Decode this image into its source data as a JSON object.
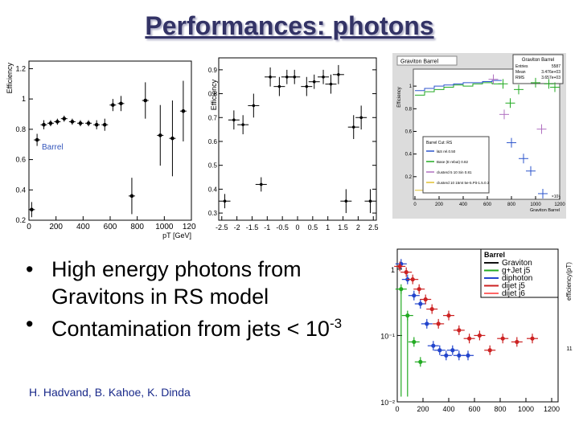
{
  "slide": {
    "title": "Performances: photons",
    "bullets": [
      {
        "text": "High energy photons from Gravitons in RS model",
        "sup": ""
      },
      {
        "text": "Contamination from jets < 10",
        "sup": "-3"
      }
    ],
    "authors": "H. Hadvand, B. Kahoe, K. Dinda"
  },
  "chart_data": [
    {
      "type": "scatter",
      "ylabel": "Efficiency",
      "xlabel": "pT [GeV]",
      "legend": "Barrel",
      "xlim": [
        0,
        1200
      ],
      "ylim": [
        0.2,
        1.25
      ],
      "x_ticks": [
        "0",
        "200",
        "400",
        "600",
        "800",
        "1000",
        "1200"
      ],
      "y_ticks": [
        "0.2",
        "0.4",
        "0.6",
        "0.8",
        "1",
        "1.2"
      ],
      "points": [
        {
          "x": 20,
          "y": 0.27,
          "err": 0.05
        },
        {
          "x": 60,
          "y": 0.73,
          "err": 0.04
        },
        {
          "x": 110,
          "y": 0.83,
          "err": 0.03
        },
        {
          "x": 160,
          "y": 0.84,
          "err": 0.02
        },
        {
          "x": 210,
          "y": 0.85,
          "err": 0.02
        },
        {
          "x": 260,
          "y": 0.87,
          "err": 0.02
        },
        {
          "x": 320,
          "y": 0.85,
          "err": 0.02
        },
        {
          "x": 380,
          "y": 0.84,
          "err": 0.02
        },
        {
          "x": 440,
          "y": 0.84,
          "err": 0.02
        },
        {
          "x": 500,
          "y": 0.83,
          "err": 0.03
        },
        {
          "x": 560,
          "y": 0.83,
          "err": 0.04
        },
        {
          "x": 620,
          "y": 0.96,
          "err": 0.04
        },
        {
          "x": 680,
          "y": 0.97,
          "err": 0.05
        },
        {
          "x": 760,
          "y": 0.36,
          "err": 0.12
        },
        {
          "x": 860,
          "y": 0.99,
          "err": 0.12
        },
        {
          "x": 970,
          "y": 0.76,
          "err": 0.2
        },
        {
          "x": 1060,
          "y": 0.74,
          "err": 0.25
        },
        {
          "x": 1140,
          "y": 0.92,
          "err": 0.2
        }
      ]
    },
    {
      "type": "scatter",
      "ylabel": "Efficiency",
      "xlabel": "",
      "xlim": [
        -2.6,
        2.6
      ],
      "ylim": [
        0.27,
        0.95
      ],
      "x_ticks": [
        "-2.5",
        "-2",
        "-1.5",
        "-1",
        "-0.5",
        "0",
        "0.5",
        "1",
        "1.5",
        "2",
        "2.5"
      ],
      "x_tick_values": [
        -2.5,
        -2,
        -1.5,
        -1,
        -0.5,
        0,
        0.5,
        1,
        1.5,
        2,
        2.5
      ],
      "y_ticks": [
        "0.3",
        "0.4",
        "0.5",
        "0.6",
        "0.7",
        "0.8",
        "0.9"
      ],
      "y_tick_values": [
        0.3,
        0.4,
        0.5,
        0.6,
        0.7,
        0.8,
        0.9
      ],
      "points": [
        {
          "x": -2.4,
          "y": 0.35,
          "err": 0.03
        },
        {
          "x": -2.1,
          "y": 0.69,
          "err": 0.04
        },
        {
          "x": -1.8,
          "y": 0.67,
          "err": 0.04
        },
        {
          "x": -1.45,
          "y": 0.75,
          "err": 0.05
        },
        {
          "x": -1.2,
          "y": 0.42,
          "err": 0.03
        },
        {
          "x": -0.9,
          "y": 0.87,
          "err": 0.04
        },
        {
          "x": -0.6,
          "y": 0.83,
          "err": 0.04
        },
        {
          "x": -0.35,
          "y": 0.87,
          "err": 0.03
        },
        {
          "x": -0.1,
          "y": 0.87,
          "err": 0.03
        },
        {
          "x": 0.3,
          "y": 0.83,
          "err": 0.04
        },
        {
          "x": 0.55,
          "y": 0.85,
          "err": 0.03
        },
        {
          "x": 0.85,
          "y": 0.87,
          "err": 0.03
        },
        {
          "x": 1.1,
          "y": 0.84,
          "err": 0.04
        },
        {
          "x": 1.35,
          "y": 0.88,
          "err": 0.04
        },
        {
          "x": 1.6,
          "y": 0.35,
          "err": 0.05
        },
        {
          "x": 1.85,
          "y": 0.66,
          "err": 0.05
        },
        {
          "x": 2.1,
          "y": 0.7,
          "err": 0.05
        },
        {
          "x": 2.4,
          "y": 0.35,
          "err": 0.05
        }
      ]
    },
    {
      "type": "line",
      "title": "Graviton Barrel",
      "stats_title": "Graviton Barrel",
      "stats": [
        {
          "label": "Entries",
          "value": "5587"
        },
        {
          "label": "Mean",
          "value": "3.476e+03"
        },
        {
          "label": "RMS",
          "value": "3.657e+03"
        }
      ],
      "ylabel": "Efficiency",
      "xlabel": "Graviton Barrel",
      "x_ticks": [
        "0",
        "200",
        "400",
        "600",
        "800",
        "1000",
        "1200"
      ],
      "x_exponent": "×10³",
      "y_ticks": [
        "0.2",
        "0.4",
        "0.6",
        "0.8",
        "1"
      ],
      "legend_title": "Barrel Cut: RS",
      "legend": [
        "l&S rel.0.50",
        "Base (E rebut) 0.82",
        "clusterd 5 10 Sin 0.81",
        "clusterd 10 15mt 5e-5.Pit-1.5.0.3"
      ],
      "colors": [
        "#2c55cc",
        "#22aa22",
        "#b070c0",
        "#e0c030"
      ]
    },
    {
      "type": "scatter",
      "title": "Barrel",
      "ylabel": "efficiency(pT)",
      "xlim": [
        0,
        1250
      ],
      "x_ticks": [
        "0",
        "200",
        "400",
        "600",
        "800",
        "1000",
        "1200"
      ],
      "x_tick_values": [
        0,
        200,
        400,
        600,
        800,
        1000,
        1200
      ],
      "y_log": true,
      "ylim": [
        0.01,
        2
      ],
      "y_ticks": [
        "1",
        "10⁻¹",
        "10⁻²"
      ],
      "y_tick_values": [
        1,
        0.1,
        0.01
      ],
      "right_label": "11",
      "series": [
        {
          "name": "Graviton",
          "color": "#101010",
          "x": [],
          "y": []
        },
        {
          "name": "g+Jet j5",
          "color": "#22aa22",
          "x": [
            30,
            80,
            130,
            180
          ],
          "y": [
            0.5,
            0.2,
            0.08,
            0.04
          ]
        },
        {
          "name": "diphoton",
          "color": "#2244cc",
          "x": [
            30,
            80,
            130,
            180,
            230,
            280,
            330,
            380,
            430,
            480,
            550
          ],
          "y": [
            1.2,
            0.7,
            0.4,
            0.3,
            0.15,
            0.07,
            0.06,
            0.05,
            0.06,
            0.05,
            0.05
          ]
        },
        {
          "name": "dijet j5",
          "color": "#cc2222",
          "x": [
            20,
            70,
            120,
            170,
            220,
            270,
            320,
            400,
            480,
            560,
            640,
            720,
            820,
            930,
            1050
          ],
          "y": [
            1.1,
            0.9,
            0.7,
            0.5,
            0.35,
            0.25,
            0.15,
            0.2,
            0.12,
            0.09,
            0.1,
            0.06,
            0.09,
            0.08,
            0.09
          ]
        },
        {
          "name": "dijet j6",
          "color": "#ff6666",
          "x": [],
          "y": []
        }
      ]
    }
  ]
}
